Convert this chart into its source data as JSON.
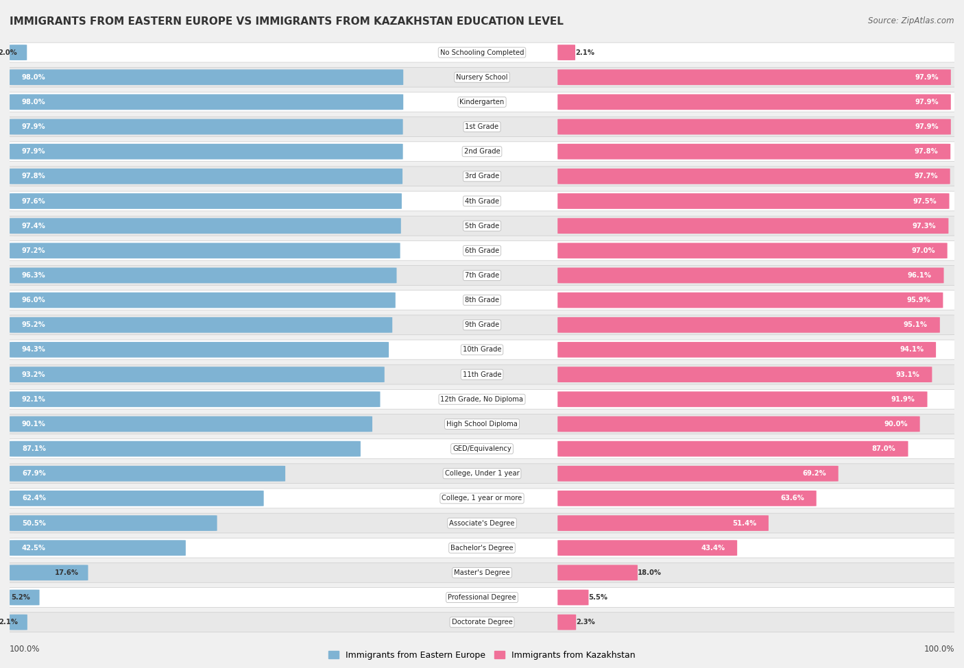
{
  "title": "IMMIGRANTS FROM EASTERN EUROPE VS IMMIGRANTS FROM KAZAKHSTAN EDUCATION LEVEL",
  "source": "Source: ZipAtlas.com",
  "categories": [
    "No Schooling Completed",
    "Nursery School",
    "Kindergarten",
    "1st Grade",
    "2nd Grade",
    "3rd Grade",
    "4th Grade",
    "5th Grade",
    "6th Grade",
    "7th Grade",
    "8th Grade",
    "9th Grade",
    "10th Grade",
    "11th Grade",
    "12th Grade, No Diploma",
    "High School Diploma",
    "GED/Equivalency",
    "College, Under 1 year",
    "College, 1 year or more",
    "Associate's Degree",
    "Bachelor's Degree",
    "Master's Degree",
    "Professional Degree",
    "Doctorate Degree"
  ],
  "eastern_europe": [
    2.0,
    98.0,
    98.0,
    97.9,
    97.9,
    97.8,
    97.6,
    97.4,
    97.2,
    96.3,
    96.0,
    95.2,
    94.3,
    93.2,
    92.1,
    90.1,
    87.1,
    67.9,
    62.4,
    50.5,
    42.5,
    17.6,
    5.2,
    2.1
  ],
  "kazakhstan": [
    2.1,
    97.9,
    97.9,
    97.9,
    97.8,
    97.7,
    97.5,
    97.3,
    97.0,
    96.1,
    95.9,
    95.1,
    94.1,
    93.1,
    91.9,
    90.0,
    87.0,
    69.2,
    63.6,
    51.4,
    43.4,
    18.0,
    5.5,
    2.3
  ],
  "blue_color": "#7fb3d3",
  "pink_color": "#f07098",
  "bg_color": "#f0f0f0",
  "row_bg_color": "#e8e8e8",
  "row_alt_color": "#ffffff",
  "label_blue": "Immigrants from Eastern Europe",
  "label_pink": "Immigrants from Kazakhstan"
}
